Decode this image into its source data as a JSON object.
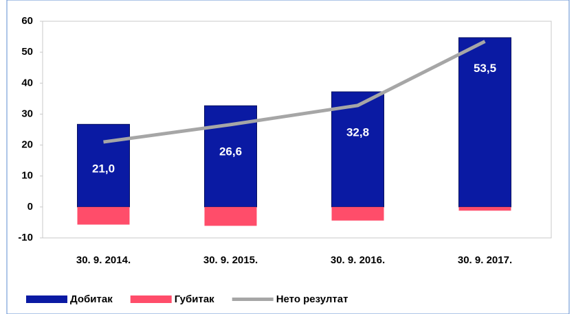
{
  "chart_data": {
    "type": "bar",
    "categories": [
      "30. 9. 2014.",
      "30. 9. 2015.",
      "30. 9. 2016.",
      "30. 9. 2017."
    ],
    "series": [
      {
        "name": "Добитак",
        "color": "#0a1aa3",
        "values": [
          26.7,
          32.7,
          37.2,
          54.7
        ]
      },
      {
        "name": "Губитак",
        "color": "#ff4d6a",
        "values": [
          -5.7,
          -6.1,
          -4.4,
          -1.2
        ]
      },
      {
        "name": "Нето резултат",
        "type": "line",
        "color": "#a6a6a6",
        "values": [
          21.0,
          26.6,
          32.8,
          53.5
        ],
        "value_labels": [
          "21,0",
          "26,6",
          "32,8",
          "53,5"
        ]
      }
    ],
    "ylim": [
      -10,
      60
    ],
    "yticks": [
      -10,
      0,
      10,
      20,
      30,
      40,
      50,
      60
    ]
  }
}
